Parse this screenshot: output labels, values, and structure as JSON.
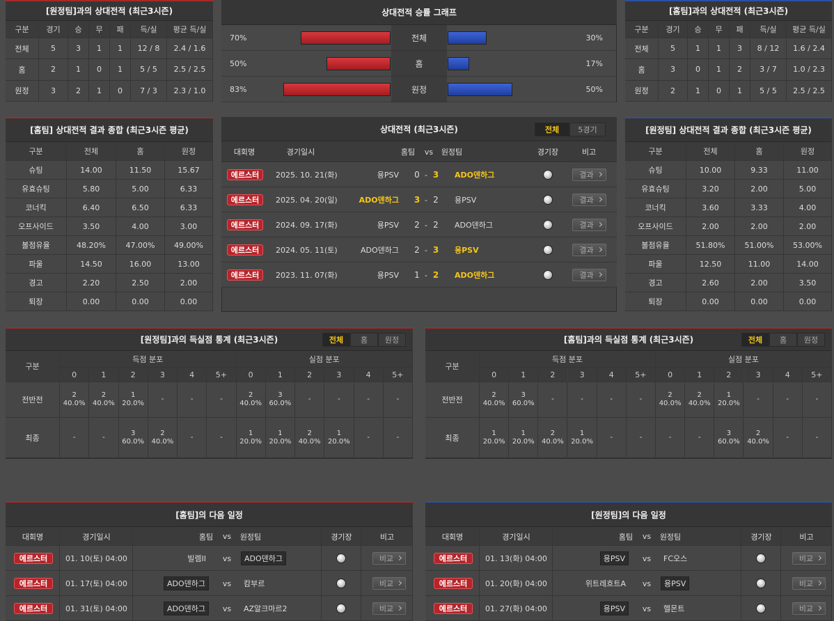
{
  "away_h2h": {
    "title": "[원정팀]과의 상대전적 (최근3시즌)",
    "header": [
      "구분",
      "경기",
      "승",
      "무",
      "패",
      "득/실",
      "평균 득/실"
    ],
    "rows": [
      [
        "전체",
        "5",
        "3",
        "1",
        "1",
        "12 / 8",
        "2.4 / 1.6"
      ],
      [
        "홈",
        "2",
        "1",
        "0",
        "1",
        "5 / 5",
        "2.5 / 2.5"
      ],
      [
        "원정",
        "3",
        "2",
        "1",
        "0",
        "7 / 3",
        "2.3 / 1.0"
      ]
    ]
  },
  "win_graph": {
    "title": "상대전적 승률 그래프",
    "rows": [
      {
        "label": "전체",
        "home": 70,
        "home_label": "70%",
        "away": 30,
        "away_label": "30%"
      },
      {
        "label": "홈",
        "home": 50,
        "home_label": "50%",
        "away": 17,
        "away_label": "17%"
      },
      {
        "label": "원정",
        "home": 83,
        "home_label": "83%",
        "away": 50,
        "away_label": "50%"
      }
    ]
  },
  "home_h2h": {
    "title": "[홈팀]과의 상대전적 (최근3시즌)",
    "header": [
      "구분",
      "경기",
      "승",
      "무",
      "패",
      "득/실",
      "평균 득/실"
    ],
    "rows": [
      [
        "전체",
        "5",
        "1",
        "1",
        "3",
        "8 / 12",
        "1.6 / 2.4"
      ],
      [
        "홈",
        "3",
        "0",
        "1",
        "2",
        "3 / 7",
        "1.0 / 2.3"
      ],
      [
        "원정",
        "2",
        "1",
        "0",
        "1",
        "5 / 5",
        "2.5 / 2.5"
      ]
    ]
  },
  "home_summary": {
    "title": "[홈팀] 상대전적 결과 종합 (최근3시즌 평균)",
    "header": [
      "구분",
      "전체",
      "홈",
      "원정"
    ],
    "rows": [
      [
        "슈팅",
        "14.00",
        "11.50",
        "15.67"
      ],
      [
        "유효슈팅",
        "5.80",
        "5.00",
        "6.33"
      ],
      [
        "코너킥",
        "6.40",
        "6.50",
        "6.33"
      ],
      [
        "오프사이드",
        "3.50",
        "4.00",
        "3.00"
      ],
      [
        "볼점유율",
        "48.20%",
        "47.00%",
        "49.00%"
      ],
      [
        "파울",
        "14.50",
        "16.00",
        "13.00"
      ],
      [
        "경고",
        "2.20",
        "2.50",
        "2.00"
      ],
      [
        "퇴장",
        "0.00",
        "0.00",
        "0.00"
      ]
    ]
  },
  "h2h_list": {
    "title": "상대전적 (최근3시즌)",
    "tabs": [
      "전체",
      "5경기"
    ],
    "header": {
      "league": "대회명",
      "date": "경기일시",
      "home": "홈팀",
      "vs": "vs",
      "away": "원정팀",
      "venue": "경기장",
      "note": "비고"
    },
    "separator": "-",
    "button": "결과",
    "rows": [
      {
        "league": "에르스터",
        "date": "2025. 10. 21(화)",
        "home": "용PSV",
        "home_score": 0,
        "away_score": 3,
        "away": "ADO덴하그"
      },
      {
        "league": "에르스터",
        "date": "2025. 04. 20(일)",
        "home": "ADO덴하그",
        "home_score": 3,
        "away_score": 2,
        "away": "용PSV"
      },
      {
        "league": "에르스터",
        "date": "2024. 09. 17(화)",
        "home": "용PSV",
        "home_score": 2,
        "away_score": 2,
        "away": "ADO덴하그"
      },
      {
        "league": "에르스터",
        "date": "2024. 05. 11(토)",
        "home": "ADO덴하그",
        "home_score": 2,
        "away_score": 3,
        "away": "용PSV"
      },
      {
        "league": "에르스터",
        "date": "2023. 11. 07(화)",
        "home": "용PSV",
        "home_score": 1,
        "away_score": 2,
        "away": "ADO덴하그"
      }
    ]
  },
  "away_summary": {
    "title": "[원정팀] 상대전적 결과 종합 (최근3시즌 평균)",
    "header": [
      "구분",
      "전체",
      "홈",
      "원정"
    ],
    "rows": [
      [
        "슈팅",
        "10.00",
        "9.33",
        "11.00"
      ],
      [
        "유효슈팅",
        "3.20",
        "2.00",
        "5.00"
      ],
      [
        "코너킥",
        "3.60",
        "3.33",
        "4.00"
      ],
      [
        "오프사이드",
        "2.00",
        "2.00",
        "2.00"
      ],
      [
        "볼점유율",
        "51.80%",
        "51.00%",
        "53.00%"
      ],
      [
        "파울",
        "12.50",
        "11.00",
        "14.00"
      ],
      [
        "경고",
        "2.60",
        "2.00",
        "3.50"
      ],
      [
        "퇴장",
        "0.00",
        "0.00",
        "0.00"
      ]
    ]
  },
  "away_goal_stats": {
    "title": "[원정팀]과의 득실점 통계 (최근3시즌)",
    "tabs": [
      "전체",
      "홈",
      "원정"
    ],
    "label": "구분",
    "groups": [
      "득점 분포",
      "실점 분포"
    ],
    "columns": [
      "0",
      "1",
      "2",
      "3",
      "4",
      "5+"
    ],
    "rows": [
      {
        "label": "전반전",
        "scored": [
          [
            "2",
            "40.0%"
          ],
          [
            "2",
            "40.0%"
          ],
          [
            "1",
            "20.0%"
          ],
          [
            "-"
          ],
          [
            "-"
          ],
          [
            "-"
          ]
        ],
        "conceded": [
          [
            "2",
            "40.0%"
          ],
          [
            "3",
            "60.0%"
          ],
          [
            "-"
          ],
          [
            "-"
          ],
          [
            "-"
          ],
          [
            "-"
          ]
        ]
      },
      {
        "label": "최종",
        "scored": [
          [
            "-"
          ],
          [
            "-"
          ],
          [
            "3",
            "60.0%"
          ],
          [
            "2",
            "40.0%"
          ],
          [
            "-"
          ],
          [
            "-"
          ]
        ],
        "conceded": [
          [
            "1",
            "20.0%"
          ],
          [
            "1",
            "20.0%"
          ],
          [
            "2",
            "40.0%"
          ],
          [
            "1",
            "20.0%"
          ],
          [
            "-"
          ],
          [
            "-"
          ]
        ]
      }
    ]
  },
  "home_goal_stats": {
    "title": "[홈팀]과의 득실점 통계 (최근3시즌)",
    "tabs": [
      "전체",
      "홈",
      "원정"
    ],
    "label": "구분",
    "groups": [
      "득점 분포",
      "실점 분포"
    ],
    "columns": [
      "0",
      "1",
      "2",
      "3",
      "4",
      "5+"
    ],
    "rows": [
      {
        "label": "전반전",
        "scored": [
          [
            "2",
            "40.0%"
          ],
          [
            "3",
            "60.0%"
          ],
          [
            "-"
          ],
          [
            "-"
          ],
          [
            "-"
          ],
          [
            "-"
          ]
        ],
        "conceded": [
          [
            "2",
            "40.0%"
          ],
          [
            "2",
            "40.0%"
          ],
          [
            "1",
            "20.0%"
          ],
          [
            "-"
          ],
          [
            "-"
          ],
          [
            "-"
          ]
        ]
      },
      {
        "label": "최종",
        "scored": [
          [
            "1",
            "20.0%"
          ],
          [
            "1",
            "20.0%"
          ],
          [
            "2",
            "40.0%"
          ],
          [
            "1",
            "20.0%"
          ],
          [
            "-"
          ],
          [
            "-"
          ]
        ],
        "conceded": [
          [
            "-"
          ],
          [
            "-"
          ],
          [
            "3",
            "60.0%"
          ],
          [
            "2",
            "40.0%"
          ],
          [
            "-"
          ],
          [
            "-"
          ]
        ]
      }
    ]
  },
  "home_schedule": {
    "title": "[홈팀]의 다음 일정",
    "header": {
      "league": "대회명",
      "date": "경기일시",
      "home": "홈팀",
      "vs": "vs",
      "away": "원정팀",
      "venue": "경기장",
      "note": "비고"
    },
    "button": "비교",
    "rows": [
      {
        "league": "에르스터",
        "date": "01. 10(토) 04:00",
        "home": "빌렘II",
        "away": "ADO덴하그",
        "focus": "away"
      },
      {
        "league": "에르스터",
        "date": "01. 17(토) 04:00",
        "home": "ADO덴하그",
        "away": "캄부르",
        "focus": "home"
      },
      {
        "league": "에르스터",
        "date": "01. 31(토) 04:00",
        "home": "ADO덴하그",
        "away": "AZ알크마르2",
        "focus": "home"
      }
    ]
  },
  "away_schedule": {
    "title": "[원정팀]의 다음 일정",
    "header": {
      "league": "대회명",
      "date": "경기일시",
      "home": "홈팀",
      "vs": "vs",
      "away": "원정팀",
      "venue": "경기장",
      "note": "비고"
    },
    "button": "비교",
    "rows": [
      {
        "league": "에르스터",
        "date": "01. 13(화) 04:00",
        "home": "용PSV",
        "away": "FC오스",
        "focus": "home"
      },
      {
        "league": "에르스터",
        "date": "01. 20(화) 04:00",
        "home": "위트레흐트A",
        "away": "용PSV",
        "focus": "away"
      },
      {
        "league": "에르스터",
        "date": "01. 27(화) 04:00",
        "home": "용PSV",
        "away": "헬몬트",
        "focus": "home"
      }
    ]
  }
}
